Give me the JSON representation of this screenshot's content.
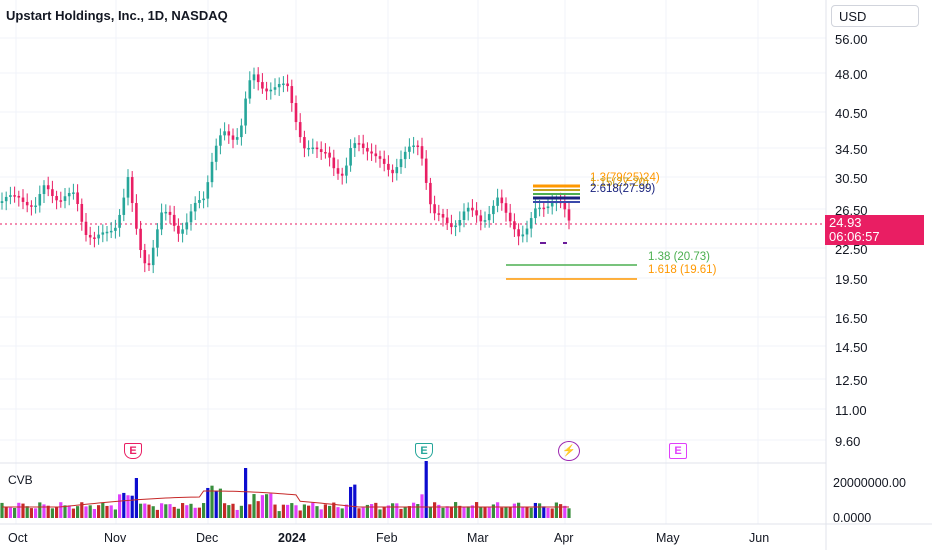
{
  "header": {
    "symbol_title": "Upstart Holdings, Inc., 1D, NASDAQ",
    "currency": "USD"
  },
  "price_axis": {
    "labels": [
      "56.00",
      "48.00",
      "40.50",
      "34.50",
      "30.50",
      "26.50",
      "22.50",
      "19.50",
      "16.50",
      "14.50",
      "12.50",
      "11.00",
      "9.60"
    ]
  },
  "last_price": {
    "price": "24.93",
    "countdown": "06:06:57"
  },
  "time_axis": {
    "labels": [
      "Oct",
      "Nov",
      "Dec",
      "2024",
      "Feb",
      "Mar",
      "Apr",
      "May",
      "Jun"
    ]
  },
  "volume_pane": {
    "title": "CVB",
    "labels": [
      "20000000.00",
      "0.0000"
    ]
  },
  "fib_levels": {
    "l1": "1.38 (20.73)",
    "l2": "1.618 (19.61)",
    "cluster_a": "1.3(79(25)24)",
    "cluster_b": "1.15(27.20)",
    "cluster_c": "2.618(27.99)"
  },
  "events": {
    "e1": "E",
    "e2": "E",
    "e3": "E",
    "dividend": "⚡"
  },
  "colors": {
    "up": "#26a69a",
    "down": "#e91e63",
    "vol_blue": "#0c0ccf",
    "vol_green": "#388e3c",
    "vol_red": "#c62828",
    "vol_pink": "#e040fb",
    "fib_green": "#4caf50",
    "fib_orange": "#ff9800"
  }
}
